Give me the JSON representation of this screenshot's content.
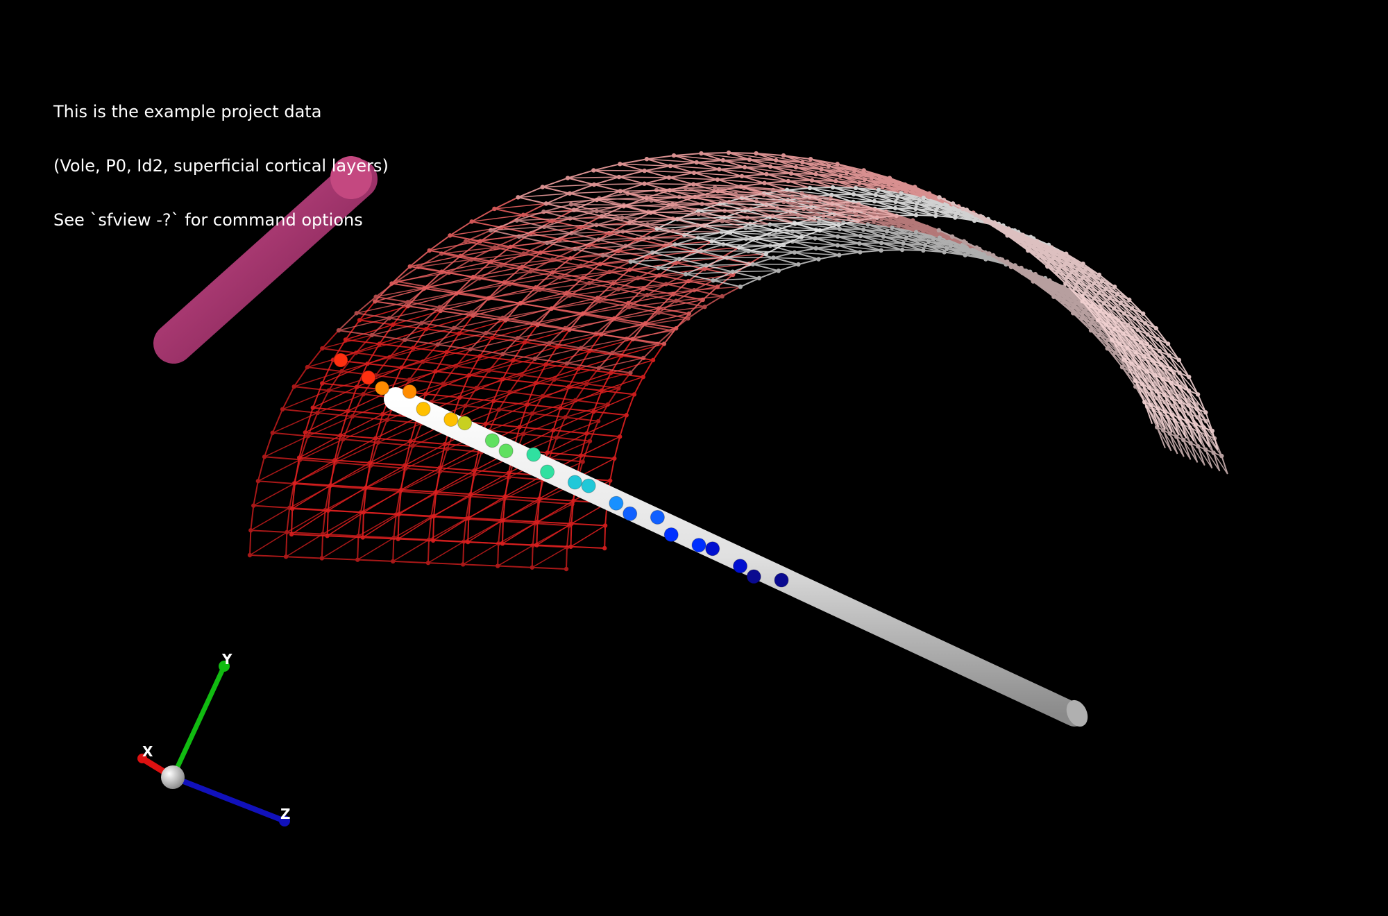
{
  "overlay": {
    "lines": [
      "This is the example project data",
      "(Vole, P0, Id2, superficial cortical layers)",
      "See `sfview -?` for command options"
    ]
  },
  "axes": {
    "x_label": "X",
    "y_label": "Y",
    "z_label": "Z",
    "x_color": "#dd1111",
    "y_color": "#11bb11",
    "z_color": "#1111bb"
  },
  "scene": {
    "background_color": "#000000",
    "mesh_edge_colors": [
      "#e02020",
      "#e86060",
      "#f0a0a0",
      "#f5d5d5",
      "#e8e8e8"
    ],
    "marker_colors": [
      "#ff3010",
      "#ff8c00",
      "#ffc000",
      "#c8d020",
      "#60e060",
      "#30e0a0",
      "#20c8d8",
      "#1890ff",
      "#1060ff",
      "#0030ff",
      "#0010d0",
      "#0a0a90"
    ],
    "probe_color": "#d8d8d8",
    "rod_color": "#b03870"
  }
}
